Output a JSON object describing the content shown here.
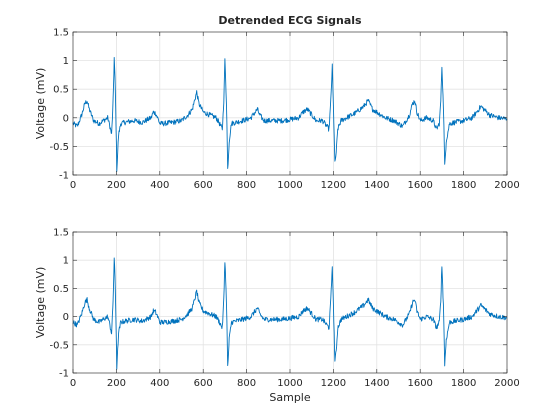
{
  "chart_data": [
    {
      "type": "line",
      "title": "Detrended ECG Signals",
      "xlabel": "",
      "ylabel": "Voltage (mV)",
      "xlim": [
        0,
        2000
      ],
      "ylim": [
        -1,
        1.5
      ],
      "xticks": [
        0,
        200,
        400,
        600,
        800,
        1000,
        1200,
        1400,
        1600,
        1800,
        2000
      ],
      "yticks": [
        -1,
        -0.5,
        0,
        0.5,
        1,
        1.5
      ],
      "grid": true,
      "color": "#0072BD",
      "series": [
        {
          "x": [
            0,
            20,
            40,
            55,
            65,
            75,
            95,
            120,
            140,
            160,
            170,
            178,
            185,
            190,
            195,
            202,
            210,
            220,
            240,
            280,
            320,
            360,
            370,
            380,
            390,
            400,
            420,
            460,
            500,
            530,
            550,
            560,
            570,
            580,
            600,
            630,
            660,
            675,
            688,
            695,
            700,
            707,
            713,
            720,
            730,
            750,
            780,
            800,
            820,
            840,
            850,
            860,
            880,
            920,
            960,
            1000,
            1040,
            1060,
            1080,
            1100,
            1120,
            1150,
            1170,
            1180,
            1188,
            1195,
            1200,
            1207,
            1213,
            1220,
            1235,
            1260,
            1300,
            1340,
            1360,
            1380,
            1400,
            1440,
            1480,
            1520,
            1550,
            1565,
            1575,
            1585,
            1600,
            1630,
            1660,
            1675,
            1688,
            1695,
            1700,
            1707,
            1713,
            1720,
            1735,
            1760,
            1800,
            1840,
            1860,
            1880,
            1920,
            1960,
            2000
          ],
          "y": [
            -0.1,
            -0.15,
            0.05,
            0.25,
            0.3,
            0.15,
            -0.05,
            -0.1,
            -0.05,
            0.0,
            -0.15,
            -0.3,
            0.3,
            1.05,
            0.5,
            -0.9,
            -0.3,
            -0.1,
            -0.08,
            -0.05,
            -0.08,
            0.0,
            0.1,
            0.08,
            0.0,
            -0.1,
            -0.1,
            -0.08,
            -0.05,
            0.05,
            0.15,
            0.3,
            0.45,
            0.25,
            0.1,
            0.05,
            0.0,
            -0.1,
            -0.2,
            0.3,
            1.0,
            0.3,
            -0.9,
            -0.4,
            -0.1,
            -0.08,
            -0.05,
            -0.03,
            0.0,
            0.1,
            0.15,
            0.05,
            -0.05,
            -0.05,
            -0.05,
            -0.03,
            0.0,
            0.1,
            0.15,
            0.05,
            -0.05,
            -0.05,
            -0.15,
            -0.2,
            0.3,
            0.9,
            0.2,
            -0.8,
            -0.6,
            -0.2,
            -0.05,
            0.0,
            0.08,
            0.2,
            0.3,
            0.15,
            0.1,
            0.0,
            -0.05,
            -0.15,
            0.05,
            0.25,
            0.3,
            0.1,
            -0.05,
            0.0,
            -0.05,
            -0.2,
            -0.1,
            0.3,
            0.9,
            0.2,
            -0.85,
            -0.4,
            -0.1,
            -0.08,
            -0.05,
            0.0,
            0.1,
            0.2,
            0.05,
            0.0,
            -0.02
          ]
        }
      ]
    },
    {
      "type": "line",
      "title": "",
      "xlabel": "Sample",
      "ylabel": "Voltage (mV)",
      "xlim": [
        0,
        2000
      ],
      "ylim": [
        -1,
        1.5
      ],
      "xticks": [
        0,
        200,
        400,
        600,
        800,
        1000,
        1200,
        1400,
        1600,
        1800,
        2000
      ],
      "yticks": [
        -1,
        -0.5,
        0,
        0.5,
        1,
        1.5
      ],
      "grid": true,
      "color": "#0072BD",
      "series": [
        {
          "x": [
            0,
            20,
            40,
            55,
            65,
            75,
            95,
            120,
            140,
            160,
            170,
            178,
            185,
            190,
            195,
            202,
            210,
            220,
            240,
            280,
            320,
            360,
            370,
            380,
            390,
            400,
            420,
            460,
            500,
            530,
            550,
            560,
            570,
            580,
            600,
            630,
            660,
            675,
            688,
            695,
            700,
            707,
            713,
            720,
            730,
            750,
            780,
            800,
            820,
            840,
            850,
            860,
            880,
            920,
            960,
            1000,
            1040,
            1060,
            1080,
            1100,
            1120,
            1150,
            1170,
            1180,
            1188,
            1195,
            1200,
            1207,
            1213,
            1220,
            1235,
            1260,
            1300,
            1340,
            1360,
            1380,
            1400,
            1440,
            1480,
            1520,
            1550,
            1565,
            1575,
            1585,
            1600,
            1630,
            1660,
            1675,
            1688,
            1695,
            1700,
            1707,
            1713,
            1720,
            1735,
            1760,
            1800,
            1840,
            1860,
            1880,
            1920,
            1960,
            2000
          ],
          "y": [
            -0.1,
            -0.15,
            0.05,
            0.25,
            0.3,
            0.15,
            -0.05,
            -0.1,
            -0.05,
            0.0,
            -0.15,
            -0.3,
            0.3,
            1.05,
            0.5,
            -0.9,
            -0.3,
            -0.1,
            -0.08,
            -0.05,
            -0.08,
            0.0,
            0.1,
            0.08,
            0.0,
            -0.1,
            -0.1,
            -0.08,
            -0.05,
            0.05,
            0.15,
            0.3,
            0.45,
            0.25,
            0.1,
            0.05,
            0.0,
            -0.1,
            -0.2,
            0.3,
            1.0,
            0.3,
            -0.9,
            -0.4,
            -0.1,
            -0.08,
            -0.05,
            -0.03,
            0.0,
            0.1,
            0.15,
            0.05,
            -0.05,
            -0.05,
            -0.05,
            -0.03,
            0.0,
            0.1,
            0.15,
            0.05,
            -0.05,
            -0.05,
            -0.15,
            -0.2,
            0.3,
            0.9,
            0.2,
            -0.8,
            -0.6,
            -0.2,
            -0.05,
            0.0,
            0.08,
            0.2,
            0.3,
            0.15,
            0.1,
            0.0,
            -0.05,
            -0.15,
            0.05,
            0.25,
            0.3,
            0.1,
            -0.05,
            0.0,
            -0.05,
            -0.2,
            -0.1,
            0.3,
            0.9,
            0.2,
            -0.85,
            -0.4,
            -0.1,
            -0.08,
            -0.05,
            0.0,
            0.1,
            0.2,
            0.05,
            0.0,
            -0.02
          ]
        }
      ]
    }
  ]
}
